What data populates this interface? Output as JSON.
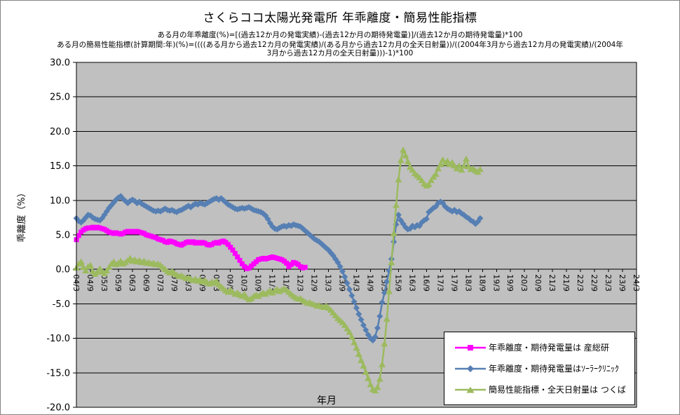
{
  "chart": {
    "title": "さくらココ太陽光発電所 年乖離度・簡易性能指標",
    "subtitle_lines": [
      "ある月の年乖離度(%)=[(過去12か月の発電実績)-(過去12か月の期待発電量)]/(過去12か月の期待発電量)*100",
      "ある月の簡易性能指標(計算期間:年)(%)=((((ある月から過去12カ月の発電実績)/(ある月から過去12カ月の全天日射量))/((2004年3月から過去12カ月の発電実績)/(2004年",
      "3月から過去12カ月の全天日射量)))-1)*100"
    ],
    "y_axis_title": "乖離度（%）",
    "x_axis_title": "年月"
  },
  "chart_data": {
    "type": "line",
    "start_month": "2004/3",
    "total_months": 241,
    "months_per_tick": 6,
    "x_tick_labels": [
      "04/3",
      "04/9",
      "05/3",
      "05/9",
      "06/3",
      "06/9",
      "07/3",
      "07/9",
      "08/3",
      "08/9",
      "09/3",
      "09/9",
      "10/3",
      "10/9",
      "11/3",
      "11/9",
      "12/3",
      "12/9",
      "13/3",
      "13/9",
      "14/3",
      "14/9",
      "15/3",
      "15/9",
      "16/3",
      "16/9",
      "17/3",
      "17/9",
      "18/3",
      "18/9",
      "19/3",
      "19/9",
      "20/3",
      "20/9",
      "21/3",
      "21/9",
      "22/3",
      "22/9",
      "23/3",
      "23/9",
      "24/3"
    ],
    "ylim": [
      -20,
      30
    ],
    "y_tick_step": 5,
    "y_tick_labels": [
      "30.0",
      "25.0",
      "20.0",
      "15.0",
      "10.0",
      "5.0",
      "0.0",
      "-5.0",
      "-10.0",
      "-15.0",
      "-20.0"
    ],
    "plot_bg_color": "#C0C0C0",
    "grid_color": "#000000",
    "legend_position": "bottom-right-inside",
    "series": [
      {
        "name": "年乖離度・期待発電量は 産総研",
        "marker": "square",
        "color": "#FF00FF",
        "start_index": 0,
        "values": [
          4.3,
          4.9,
          5.4,
          5.7,
          5.9,
          6.0,
          6.0,
          6.1,
          6.0,
          6.1,
          6.0,
          5.9,
          5.8,
          5.6,
          5.4,
          5.3,
          5.2,
          5.3,
          5.2,
          5.1,
          5.2,
          5.4,
          5.5,
          5.4,
          5.5,
          5.4,
          5.5,
          5.4,
          5.3,
          5.2,
          5.0,
          4.9,
          4.8,
          4.7,
          4.6,
          4.4,
          4.3,
          4.2,
          4.0,
          3.9,
          4.1,
          4.0,
          3.9,
          3.7,
          3.6,
          3.5,
          3.7,
          3.9,
          4.0,
          3.9,
          4.0,
          3.8,
          3.9,
          3.8,
          3.9,
          3.8,
          3.6,
          3.5,
          3.6,
          3.8,
          3.9,
          3.8,
          4.0,
          4.1,
          3.9,
          3.6,
          3.2,
          2.8,
          2.3,
          1.8,
          1.3,
          0.8,
          0.4,
          0.1,
          0.2,
          0.5,
          0.8,
          1.1,
          1.4,
          1.5,
          1.6,
          1.5,
          1.6,
          1.7,
          1.8,
          1.7,
          1.6,
          1.5,
          1.4,
          1.2,
          0.9,
          0.4,
          0.7,
          1.0,
          0.9,
          0.7,
          0.4,
          0.2,
          0.3
        ]
      },
      {
        "name": "年乖離度・期待発電量はｿｰﾗｰｸﾘﾆｯｸ",
        "marker": "diamond",
        "color": "#567FB3",
        "start_index": 0,
        "values": [
          7.4,
          7.0,
          6.8,
          7.1,
          7.5,
          7.9,
          7.8,
          7.5,
          7.3,
          7.2,
          7.1,
          7.4,
          7.9,
          8.4,
          8.9,
          9.3,
          9.7,
          10.1,
          10.4,
          10.6,
          10.2,
          9.9,
          9.6,
          9.9,
          10.1,
          9.9,
          9.6,
          9.8,
          9.5,
          9.3,
          9.1,
          8.9,
          8.7,
          8.5,
          8.4,
          8.5,
          8.4,
          8.6,
          8.8,
          8.6,
          8.5,
          8.6,
          8.4,
          8.3,
          8.5,
          8.6,
          8.8,
          9.0,
          9.2,
          9.0,
          9.3,
          9.5,
          9.4,
          9.6,
          9.5,
          9.4,
          9.6,
          9.8,
          10.0,
          10.2,
          10.3,
          10.1,
          10.3,
          10.0,
          9.7,
          9.4,
          9.2,
          9.0,
          8.8,
          8.7,
          8.8,
          8.9,
          8.8,
          8.9,
          9.0,
          8.8,
          8.6,
          8.5,
          8.4,
          8.3,
          8.1,
          7.8,
          7.3,
          6.7,
          6.2,
          5.9,
          5.8,
          6.0,
          6.2,
          6.3,
          6.2,
          6.4,
          6.3,
          6.5,
          6.4,
          6.3,
          6.2,
          5.9,
          5.6,
          5.3,
          5.0,
          4.7,
          4.4,
          4.2,
          4.0,
          3.7,
          3.4,
          3.1,
          2.8,
          2.4,
          2.0,
          1.5,
          1.0,
          0.4,
          -0.3,
          -1.1,
          -2.0,
          -2.9,
          -3.8,
          -4.7,
          -5.6,
          -6.5,
          -7.3,
          -8.1,
          -8.8,
          -9.5,
          -10.0,
          -10.3,
          -9.8,
          -8.5,
          -6.8,
          -4.8,
          -3.4,
          -1.8,
          -0.2,
          1.5,
          4.0,
          6.5,
          7.9,
          7.1,
          6.6,
          6.1,
          5.8,
          5.9,
          6.3,
          6.1,
          6.4,
          6.3,
          6.8,
          7.1,
          7.3,
          8.3,
          8.6,
          8.9,
          9.1,
          9.6,
          9.8,
          9.6,
          9.1,
          8.8,
          8.6,
          8.4,
          8.6,
          8.3,
          8.4,
          8.1,
          7.9,
          7.6,
          7.4,
          7.1,
          6.9,
          6.6,
          6.9,
          7.4
        ]
      },
      {
        "name": "簡易性能指標・全天日射量は つくば",
        "marker": "triangle",
        "color": "#9CBA5E",
        "start_index": 0,
        "values": [
          0.2,
          0.8,
          1.1,
          0.3,
          -0.2,
          0.4,
          0.6,
          -0.3,
          -0.7,
          -0.4,
          0.1,
          -0.3,
          -0.6,
          -0.2,
          0.3,
          0.8,
          1.1,
          0.7,
          0.9,
          1.2,
          0.8,
          1.0,
          1.3,
          1.6,
          1.2,
          1.4,
          1.1,
          1.3,
          1.0,
          1.2,
          0.9,
          1.0,
          0.8,
          0.9,
          0.7,
          0.8,
          0.6,
          0.3,
          0.0,
          -0.3,
          -0.5,
          -0.3,
          -0.6,
          -0.8,
          -1.0,
          -0.9,
          -1.1,
          -1.3,
          -1.2,
          -1.4,
          -1.6,
          -1.4,
          -1.7,
          -1.5,
          -1.8,
          -1.6,
          -1.9,
          -2.1,
          -1.8,
          -2.0,
          -1.7,
          -2.2,
          -2.5,
          -2.8,
          -3.1,
          -3.3,
          -3.0,
          -3.3,
          -3.6,
          -3.4,
          -3.7,
          -3.9,
          -3.6,
          -4.1,
          -4.4,
          -4.2,
          -3.9,
          -3.7,
          -3.9,
          -3.6,
          -3.4,
          -3.6,
          -3.3,
          -3.1,
          -3.4,
          -3.1,
          -2.9,
          -3.2,
          -3.0,
          -2.8,
          -3.0,
          -3.3,
          -3.6,
          -3.9,
          -4.1,
          -4.3,
          -4.2,
          -4.5,
          -4.7,
          -4.9,
          -4.8,
          -5.0,
          -5.1,
          -5.3,
          -5.2,
          -5.4,
          -5.5,
          -5.3,
          -5.6,
          -5.9,
          -6.3,
          -6.7,
          -7.1,
          -7.4,
          -7.7,
          -8.1,
          -8.6,
          -9.1,
          -9.8,
          -10.6,
          -11.4,
          -12.3,
          -13.2,
          -14.0,
          -14.9,
          -15.8,
          -16.7,
          -17.4,
          -17.6,
          -17.1,
          -15.9,
          -13.8,
          -10.8,
          -7.2,
          -3.2,
          1.0,
          5.2,
          9.3,
          13.0,
          15.8,
          17.3,
          16.5,
          15.6,
          14.8,
          14.4,
          13.9,
          13.6,
          13.3,
          12.9,
          12.4,
          12.1,
          12.3,
          12.9,
          13.4,
          13.8,
          14.6,
          15.2,
          15.9,
          15.4,
          15.7,
          15.2,
          15.5,
          15.0,
          14.6,
          15.0,
          14.4,
          15.0,
          16.0,
          14.9,
          14.5,
          14.6,
          14.3,
          14.1,
          14.5
        ]
      }
    ]
  }
}
